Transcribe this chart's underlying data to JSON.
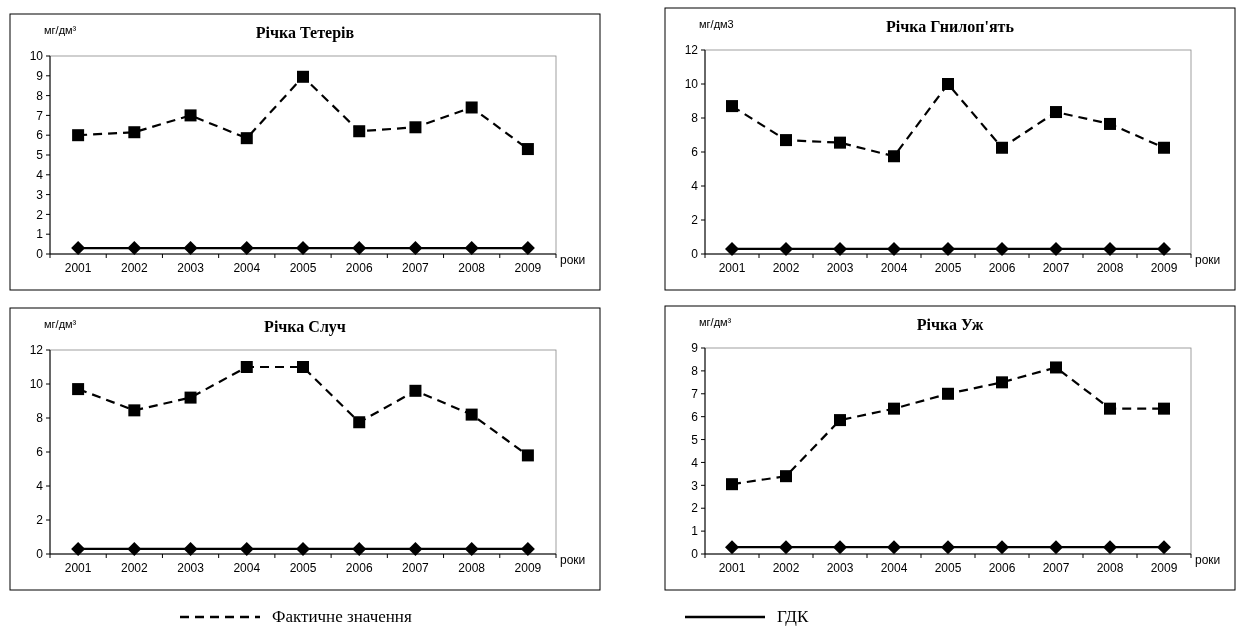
{
  "chart_data": [
    {
      "type": "line",
      "title": "Річка Тетерів",
      "ylabel": "мг/дм³",
      "xlabel": "роки",
      "categories": [
        "2001",
        "2002",
        "2003",
        "2004",
        "2005",
        "2006",
        "2007",
        "2008",
        "2009"
      ],
      "ylim": [
        0,
        10
      ],
      "yticks": [
        0,
        1,
        2,
        3,
        4,
        5,
        6,
        7,
        8,
        9,
        10
      ],
      "legend": "bottom",
      "series": [
        {
          "name": "Фактичне значення",
          "color": "#000000",
          "marker": "square",
          "line_style": "dashed",
          "values": [
            6.0,
            6.15,
            7.0,
            5.85,
            8.95,
            6.2,
            6.4,
            7.4,
            5.3
          ]
        },
        {
          "name": "ГДК",
          "color": "#000000",
          "marker": "diamond",
          "line_style": "solid",
          "values": [
            0.3,
            0.3,
            0.3,
            0.3,
            0.3,
            0.3,
            0.3,
            0.3,
            0.3
          ]
        }
      ]
    },
    {
      "type": "line",
      "title": "Річка Гнилоп'ять",
      "ylabel": "мг/дм3",
      "xlabel": "роки",
      "categories": [
        "2001",
        "2002",
        "2003",
        "2004",
        "2005",
        "2006",
        "2007",
        "2008",
        "2009"
      ],
      "ylim": [
        0,
        12
      ],
      "yticks": [
        0,
        2,
        4,
        6,
        8,
        10,
        12
      ],
      "series": [
        {
          "color": "#000000",
          "marker": "square",
          "line_style": "dashed",
          "values": [
            8.7,
            6.7,
            6.55,
            5.75,
            10.0,
            6.25,
            8.35,
            7.65,
            6.25
          ]
        },
        {
          "color": "#000000",
          "marker": "diamond",
          "line_style": "solid",
          "values": [
            0.3,
            0.3,
            0.3,
            0.3,
            0.3,
            0.3,
            0.3,
            0.3,
            0.3
          ]
        }
      ]
    },
    {
      "type": "line",
      "title": "Річка Случ",
      "ylabel": "мг/дм³",
      "xlabel": "роки",
      "categories": [
        "2001",
        "2002",
        "2003",
        "2004",
        "2005",
        "2006",
        "2007",
        "2008",
        "2009"
      ],
      "ylim": [
        0,
        12
      ],
      "yticks": [
        0,
        2,
        4,
        6,
        8,
        10,
        12
      ],
      "series": [
        {
          "color": "#000000",
          "marker": "square",
          "line_style": "dashed",
          "values": [
            9.7,
            8.45,
            9.2,
            11.0,
            11.0,
            7.75,
            9.6,
            8.2,
            5.8
          ]
        },
        {
          "color": "#000000",
          "marker": "diamond",
          "line_style": "solid",
          "values": [
            0.3,
            0.3,
            0.3,
            0.3,
            0.3,
            0.3,
            0.3,
            0.3,
            0.3
          ]
        }
      ]
    },
    {
      "type": "line",
      "title": "Річка Уж",
      "ylabel": "мг/дм³",
      "xlabel": "роки",
      "categories": [
        "2001",
        "2002",
        "2003",
        "2004",
        "2005",
        "2006",
        "2007",
        "2008",
        "2009"
      ],
      "ylim": [
        0,
        9
      ],
      "yticks": [
        0,
        1,
        2,
        3,
        4,
        5,
        6,
        7,
        8,
        9
      ],
      "series": [
        {
          "color": "#000000",
          "marker": "square",
          "line_style": "dashed",
          "values": [
            3.05,
            3.4,
            5.85,
            6.35,
            7.0,
            7.5,
            8.15,
            6.35,
            6.35
          ]
        },
        {
          "color": "#000000",
          "marker": "diamond",
          "line_style": "solid",
          "values": [
            0.3,
            0.3,
            0.3,
            0.3,
            0.3,
            0.3,
            0.3,
            0.3,
            0.3
          ]
        }
      ]
    }
  ]
}
